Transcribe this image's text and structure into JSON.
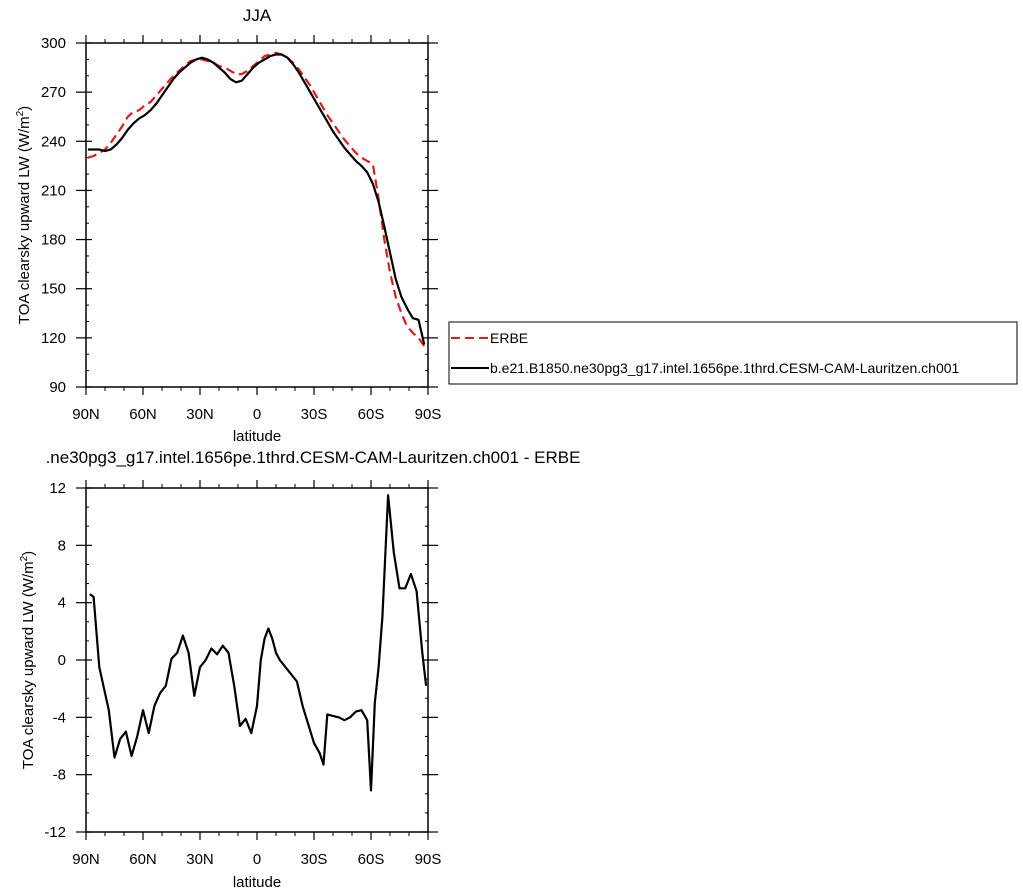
{
  "top_title": "JJA",
  "bottom_title": ".ne30pg3_g17.intel.1656pe.1thrd.CESM-CAM-Lauritzen.ch001 - ERBE",
  "chart_data": [
    {
      "type": "line",
      "title": "JJA",
      "xlabel": "latitude",
      "ylabel": "TOA clearsky upward LW (W/m²)",
      "ylabel_base": "TOA clearsky upward LW (W/m",
      "ylabel_sup": "2",
      "ylabel_tail": ")",
      "xlim": [
        -90,
        90
      ],
      "ylim": [
        90,
        300
      ],
      "xticks": [
        -90,
        -60,
        -30,
        0,
        30,
        60,
        90
      ],
      "xtick_labels": [
        "90N",
        "60N",
        "30N",
        "0",
        "30S",
        "60S",
        "90S"
      ],
      "yticks": [
        90,
        120,
        150,
        180,
        210,
        240,
        270,
        300
      ],
      "ytick_labels": [
        "90",
        "120",
        "150",
        "180",
        "210",
        "240",
        "270",
        "300"
      ],
      "grid": false,
      "legend_position": "outside-right",
      "series": [
        {
          "name": "ERBE",
          "color": "#e31a1c",
          "style": "dashed",
          "x": [
            -89,
            -86,
            -83,
            -80,
            -77,
            -74,
            -71,
            -68,
            -65,
            -62,
            -59,
            -56,
            -53,
            -50,
            -47,
            -44,
            -41,
            -38,
            -35,
            -32,
            -29,
            -26,
            -23,
            -20,
            -17,
            -14,
            -11,
            -8,
            -5,
            -2,
            1,
            4,
            7,
            10,
            13,
            16,
            19,
            22,
            25,
            28,
            31,
            34,
            37,
            40,
            43,
            46,
            49,
            52,
            55,
            58,
            61,
            64,
            67,
            70,
            73,
            76,
            79,
            82,
            85,
            88
          ],
          "y": [
            230,
            231,
            233,
            235,
            239,
            244,
            249,
            255,
            258,
            259,
            262,
            264,
            268,
            272,
            276,
            280,
            283,
            286,
            289,
            290,
            290,
            289,
            288,
            286,
            285,
            283,
            281,
            281,
            283,
            286,
            289,
            292,
            293,
            294,
            293,
            291,
            288,
            284,
            279,
            274,
            268,
            262,
            256,
            251,
            246,
            241,
            237,
            233,
            230,
            228,
            226,
            205,
            180,
            160,
            145,
            135,
            127,
            123,
            120,
            115
          ]
        },
        {
          "name": "b.e21.B1850.ne30pg3_g17.intel.1656pe.1thrd.CESM-CAM-Lauritzen.ch001",
          "color": "#000000",
          "style": "solid",
          "x": [
            -89,
            -86,
            -83,
            -80,
            -77,
            -74,
            -71,
            -68,
            -65,
            -62,
            -59,
            -56,
            -53,
            -50,
            -47,
            -44,
            -41,
            -38,
            -35,
            -32,
            -29,
            -26,
            -23,
            -20,
            -17,
            -14,
            -11,
            -8,
            -5,
            -2,
            1,
            4,
            7,
            10,
            13,
            16,
            19,
            22,
            25,
            28,
            31,
            34,
            37,
            40,
            43,
            46,
            49,
            52,
            55,
            58,
            61,
            64,
            67,
            70,
            73,
            76,
            79,
            82,
            85,
            88
          ],
          "y": [
            235,
            235,
            235,
            234,
            235,
            238,
            242,
            247,
            251,
            254,
            256,
            259,
            263,
            268,
            273,
            278,
            282,
            285,
            288,
            290,
            291,
            290,
            288,
            285,
            282,
            278,
            276,
            277,
            281,
            285,
            288,
            290,
            292,
            293,
            293,
            291,
            287,
            282,
            276,
            270,
            264,
            258,
            252,
            246,
            241,
            236,
            232,
            228,
            225,
            221,
            214,
            203,
            188,
            172,
            156,
            145,
            138,
            132,
            131,
            116
          ]
        }
      ]
    },
    {
      "type": "line",
      "title": ".ne30pg3_g17.intel.1656pe.1thrd.CESM-CAM-Lauritzen.ch001 - ERBE",
      "xlabel": "latitude",
      "ylabel": "TOA clearsky upward LW (W/m²)",
      "ylabel_base": "TOA clearsky upward LW (W/m",
      "ylabel_sup": "2",
      "ylabel_tail": ")",
      "xlim": [
        -90,
        90
      ],
      "ylim": [
        -12,
        12
      ],
      "xticks": [
        -90,
        -60,
        -30,
        0,
        30,
        60,
        90
      ],
      "xtick_labels": [
        "90N",
        "60N",
        "30N",
        "0",
        "30S",
        "60S",
        "90S"
      ],
      "yticks": [
        -12,
        -8,
        -4,
        0,
        4,
        8,
        12
      ],
      "ytick_labels": [
        "-12",
        "-8",
        "-4",
        "0",
        "4",
        "8",
        "12"
      ],
      "grid": false,
      "series": [
        {
          "color": "#000000",
          "style": "solid",
          "x": [
            -88,
            -86,
            -83,
            -78,
            -75,
            -72,
            -69,
            -66,
            -63,
            -60,
            -57,
            -54,
            -51,
            -48,
            -45,
            -42,
            -39,
            -36,
            -33,
            -30,
            -27,
            -24,
            -21,
            -18,
            -15,
            -12,
            -9,
            -6,
            -3,
            0,
            2,
            4,
            6,
            8,
            10,
            12,
            15,
            18,
            21,
            24,
            27,
            30,
            33,
            35,
            37,
            40,
            43,
            46,
            49,
            52,
            55,
            58,
            60,
            62,
            64,
            66,
            69,
            72,
            75,
            78,
            81,
            84,
            87,
            89
          ],
          "y": [
            4.6,
            4.4,
            -0.5,
            -3.5,
            -6.8,
            -5.5,
            -5,
            -6.7,
            -5.3,
            -3.5,
            -5.1,
            -3.2,
            -2.3,
            -1.8,
            0.1,
            0.5,
            1.7,
            0.5,
            -2.5,
            -0.5,
            0,
            0.8,
            0.4,
            1,
            0.5,
            -1.8,
            -4.6,
            -4.1,
            -5.1,
            -3.2,
            0,
            1.5,
            2.2,
            1.5,
            0.5,
            0,
            -0.5,
            -1,
            -1.5,
            -3.2,
            -4.5,
            -5.8,
            -6.5,
            -7.3,
            -3.8,
            -3.9,
            -4,
            -4.2,
            -4,
            -3.6,
            -3.5,
            -4.2,
            -9.1,
            -3,
            -0.5,
            3,
            11.5,
            7.5,
            5,
            5,
            6,
            4.8,
            0.5,
            -1.8
          ]
        }
      ]
    }
  ]
}
